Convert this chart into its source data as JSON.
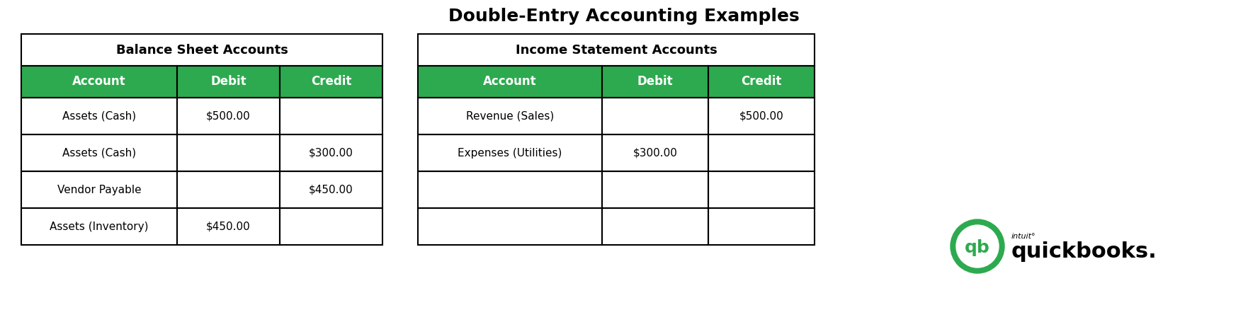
{
  "title": "Double-Entry Accounting Examples",
  "title_fontsize": 18,
  "title_fontweight": "bold",
  "background_color": "#ffffff",
  "green_header_color": "#2daa4f",
  "white_text": "#ffffff",
  "black_text": "#000000",
  "border_color": "#000000",
  "balance_sheet": {
    "section_header": "Balance Sheet Accounts",
    "col_headers": [
      "Account",
      "Debit",
      "Credit"
    ],
    "rows": [
      [
        "Assets (Cash)",
        "$500.00",
        ""
      ],
      [
        "Assets (Cash)",
        "",
        "$300.00"
      ],
      [
        "Vendor Payable",
        "",
        "$450.00"
      ],
      [
        "Assets (Inventory)",
        "$450.00",
        ""
      ]
    ]
  },
  "income_statement": {
    "section_header": "Income Statement Accounts",
    "col_headers": [
      "Account",
      "Debit",
      "Credit"
    ],
    "rows": [
      [
        "Revenue (Sales)",
        "",
        "$500.00"
      ],
      [
        "Expenses (Utilities)",
        "$300.00",
        ""
      ],
      [
        "",
        "",
        ""
      ],
      [
        "",
        "",
        ""
      ]
    ]
  }
}
